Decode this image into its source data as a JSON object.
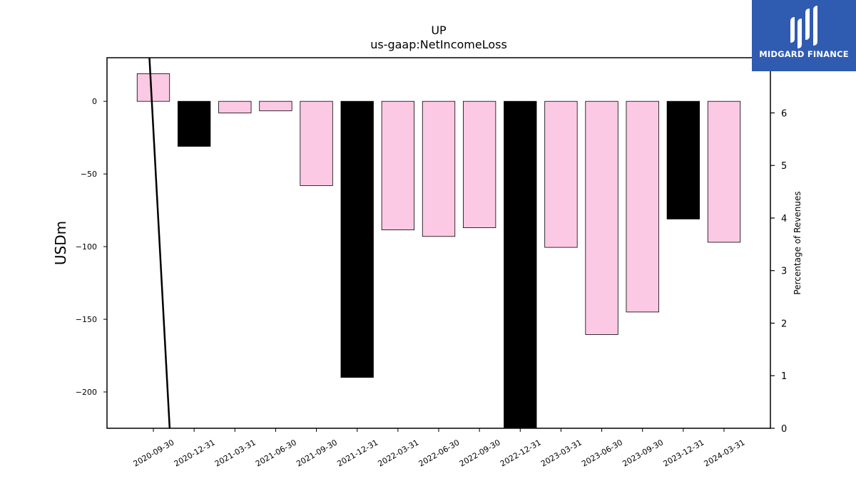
{
  "chart_data": {
    "type": "bar",
    "title": "UP",
    "subtitle": "us-gaap:NetIncomeLoss",
    "ylabel": "USDm",
    "y2label": "Percentage of Revenues",
    "categories": [
      "2020-09-30",
      "2020-12-31",
      "2021-03-31",
      "2021-06-30",
      "2021-09-30",
      "2021-12-31",
      "2022-03-31",
      "2022-06-30",
      "2022-09-30",
      "2022-12-31",
      "2023-03-31",
      "2023-06-30",
      "2023-09-30",
      "2023-12-31",
      "2024-03-31"
    ],
    "values": [
      19,
      -31,
      -8,
      -6.5,
      -58,
      -190,
      -88.5,
      -93,
      -87,
      -224.5,
      -100.5,
      -160.5,
      -145,
      -81,
      -97
    ],
    "highlight": [
      false,
      true,
      false,
      false,
      false,
      true,
      false,
      false,
      false,
      true,
      false,
      false,
      false,
      true,
      false
    ],
    "colors": {
      "default": "#fcc9e4",
      "highlight": "#000000",
      "edge": "#000000"
    },
    "ylim": [
      -225,
      30
    ],
    "yticks": [
      0,
      -50,
      -100,
      -150,
      -200
    ],
    "y2lim": [
      0,
      7.05
    ],
    "y2ticks": [
      0,
      1,
      2,
      3,
      4,
      5,
      6
    ],
    "line": {
      "name": "Percentage of Revenues",
      "x_index": [
        -0.1,
        0.4
      ],
      "values": [
        7.1,
        0
      ]
    },
    "grid": false,
    "legend": "none"
  },
  "logo": {
    "text": "MIDGARD FINANCE",
    "icon": "midgard-logo-icon"
  }
}
